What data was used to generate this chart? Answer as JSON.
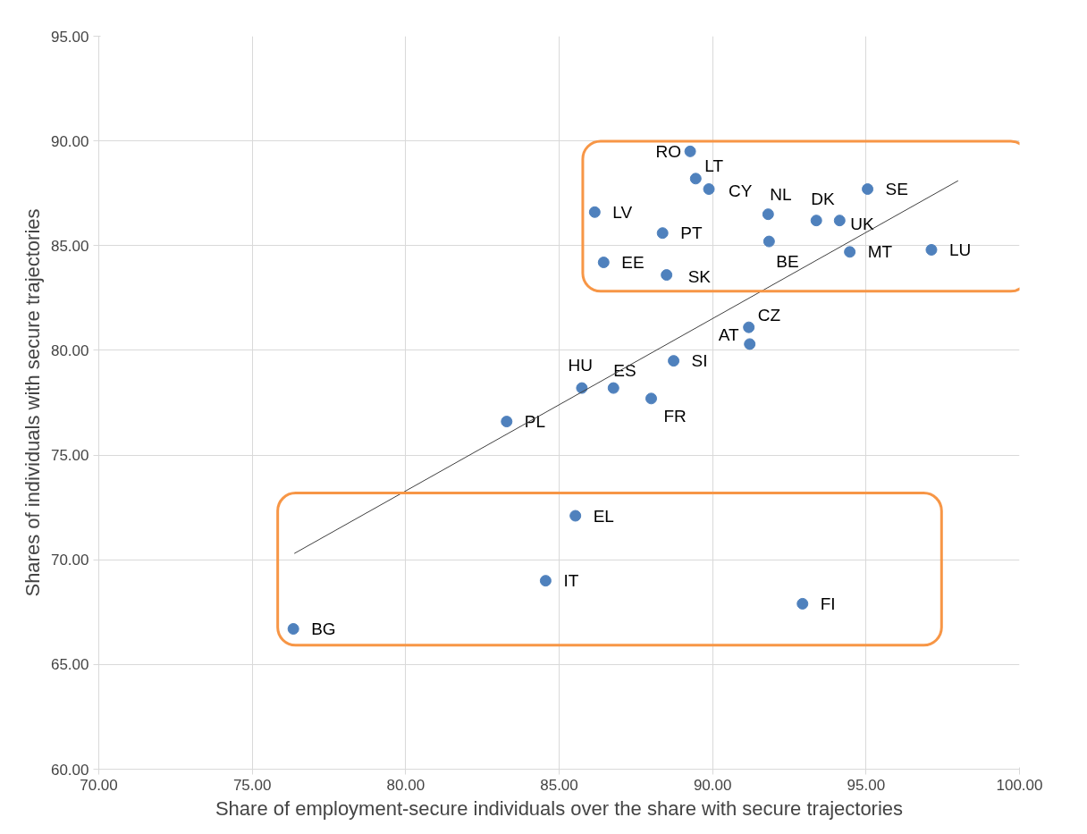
{
  "chart_data": {
    "type": "scatter",
    "xlabel": "Share of employment-secure individuals over the share with secure trajectories",
    "ylabel": "Shares of individuals with secure trajectories",
    "xlim": [
      70,
      100
    ],
    "ylim": [
      60,
      95
    ],
    "xticks": [
      {
        "value": 70,
        "label": "70.00"
      },
      {
        "value": 75,
        "label": "75.00"
      },
      {
        "value": 80,
        "label": "80.00"
      },
      {
        "value": 85,
        "label": "85.00"
      },
      {
        "value": 90,
        "label": "90.00"
      },
      {
        "value": 95,
        "label": "95.00"
      },
      {
        "value": 100,
        "label": "100.00"
      }
    ],
    "yticks": [
      {
        "value": 60,
        "label": "60.00"
      },
      {
        "value": 65,
        "label": "65.00"
      },
      {
        "value": 70,
        "label": "70.00"
      },
      {
        "value": 75,
        "label": "75.00"
      },
      {
        "value": 80,
        "label": "80.00"
      },
      {
        "value": 85,
        "label": "85.00"
      },
      {
        "value": 90,
        "label": "90.00"
      },
      {
        "value": 95,
        "label": "95.00"
      }
    ],
    "grid": true,
    "marker": "circle",
    "series": [
      {
        "color": "#4f81bd",
        "x": [
          89.27,
          89.45,
          89.88,
          91.81,
          93.38,
          94.14,
          95.05,
          86.16,
          88.37,
          91.84,
          94.47,
          86.45,
          88.5,
          97.13,
          91.18,
          91.21,
          88.73,
          85.74,
          86.77,
          88.0,
          83.29,
          85.53,
          84.56,
          92.93,
          76.34
        ],
        "values": [
          89.5,
          88.2,
          87.7,
          86.5,
          86.2,
          86.2,
          87.7,
          86.6,
          85.6,
          85.2,
          84.7,
          84.2,
          83.6,
          84.8,
          81.1,
          80.3,
          79.5,
          78.2,
          78.2,
          77.7,
          76.6,
          72.1,
          69.0,
          67.9,
          66.7
        ],
        "value_labels": [
          "RO",
          "LT",
          "CY",
          "NL",
          "DK",
          "UK",
          "SE",
          "LV",
          "PT",
          "BE",
          "MT",
          "EE",
          "SK",
          "LU",
          "CZ",
          "AT",
          "SI",
          "HU",
          "ES",
          "FR",
          "PL",
          "EL",
          "IT",
          "FI",
          "BG"
        ]
      },
      {
        "type": "line",
        "marker": "none",
        "color": "#404040",
        "x": [
          76.37,
          98.0
        ],
        "values": [
          70.3,
          88.1
        ]
      }
    ]
  }
}
